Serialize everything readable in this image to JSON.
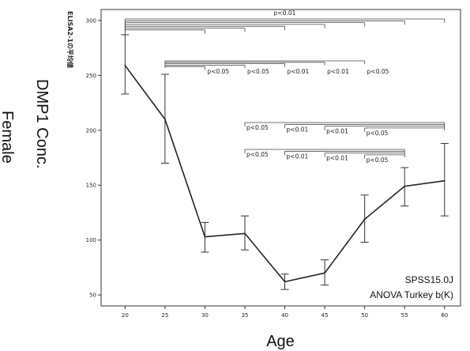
{
  "chart_data": {
    "type": "line",
    "x": [
      20,
      25,
      30,
      35,
      40,
      45,
      50,
      55,
      60
    ],
    "values": [
      259,
      210,
      103,
      106,
      62,
      70,
      119,
      149,
      154
    ],
    "error_upper": [
      287,
      251,
      116,
      122,
      69,
      82,
      141,
      166,
      188
    ],
    "error_lower": [
      233,
      170,
      89,
      91,
      55,
      59,
      98,
      131,
      122
    ],
    "xlim": [
      17,
      62
    ],
    "ylim": [
      40,
      310
    ],
    "x_ticks": [
      "20",
      "25",
      "30",
      "35",
      "40",
      "45",
      "50",
      "55",
      "60"
    ],
    "y_ticks": [
      "50",
      "100",
      "150",
      "200",
      "250",
      "300"
    ],
    "y_tick_values": [
      50,
      100,
      150,
      200,
      250,
      300
    ],
    "inner_ylabel": "ELISA2-1の平均値",
    "ylabel_line1": "DMP1 Conc.",
    "ylabel_line2": "Female",
    "xlabel": "Age",
    "note_line1": "SPSS15.0J",
    "note_line2": "ANOVA  Turkey b(K)",
    "significance": {
      "group1": {
        "from": 20,
        "to": [
          30,
          35,
          40,
          45,
          50,
          55,
          60
        ],
        "label": "p<0.01"
      },
      "group2": {
        "from": 25,
        "to": [
          30,
          35,
          40,
          45,
          50
        ],
        "labels": [
          "p<0.05",
          "p<0.05",
          "p<0.01",
          "p<0.01",
          "p<0.05"
        ]
      },
      "group3": {
        "from": 60,
        "to": [
          35,
          40,
          45,
          50
        ],
        "labels": [
          "p<0.05",
          "p<0.01",
          "p<0.01",
          "p<0.05"
        ]
      },
      "group4": {
        "from": 55,
        "to": [
          35,
          40,
          45,
          50
        ],
        "labels": [
          "p<0.05",
          "p<0.01",
          "p<0.01",
          "p<0.05"
        ]
      }
    }
  }
}
